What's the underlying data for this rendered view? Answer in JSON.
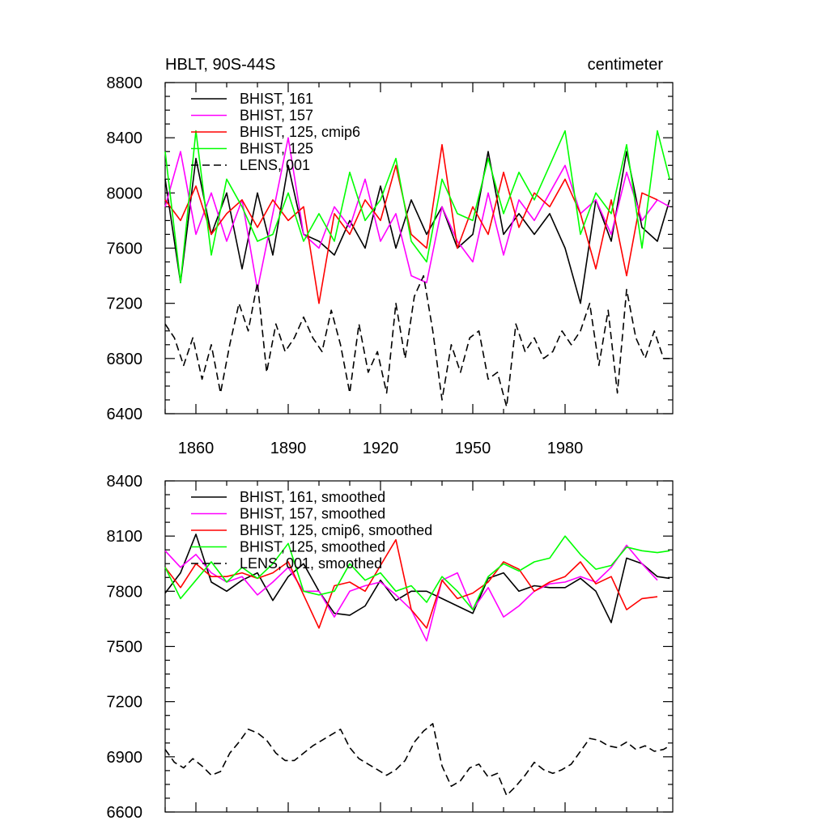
{
  "chart_data": [
    {
      "type": "line",
      "title": "HBLT, 90S-44S",
      "units": "centimeter",
      "xlim": [
        1850,
        2015
      ],
      "ylim": [
        6400,
        8800
      ],
      "xticks": [
        1860,
        1890,
        1920,
        1950,
        1980
      ],
      "yticks": [
        6400,
        6800,
        7200,
        7600,
        8000,
        8400,
        8800
      ],
      "x_tick_labels": [
        "1860",
        "1890",
        "1920",
        "1950",
        "1980"
      ],
      "y_tick_labels": [
        "6400",
        "6800",
        "7200",
        "7600",
        "8000",
        "8400",
        "8800"
      ],
      "legend_location": "top-left",
      "series": [
        {
          "name": "BHIST, 161",
          "color": "#000000",
          "dash": "solid",
          "x": [
            1850,
            1855,
            1860,
            1865,
            1870,
            1875,
            1880,
            1885,
            1890,
            1895,
            1900,
            1905,
            1910,
            1915,
            1920,
            1925,
            1930,
            1935,
            1940,
            1945,
            1950,
            1955,
            1960,
            1965,
            1970,
            1975,
            1980,
            1985,
            1990,
            1995,
            2000,
            2005,
            2010,
            2014
          ],
          "values": [
            8100,
            7350,
            8250,
            7700,
            8000,
            7450,
            8000,
            7550,
            8200,
            7700,
            7650,
            7550,
            7800,
            7600,
            8050,
            7600,
            7950,
            7700,
            7900,
            7600,
            7700,
            8300,
            7700,
            7850,
            7700,
            7850,
            7600,
            7200,
            7950,
            7650,
            8300,
            7750,
            7650,
            7950
          ]
        },
        {
          "name": "BHIST, 157",
          "color": "#ff00ff",
          "dash": "solid",
          "x": [
            1850,
            1855,
            1860,
            1865,
            1870,
            1875,
            1880,
            1885,
            1890,
            1895,
            1900,
            1905,
            1910,
            1915,
            1920,
            1925,
            1930,
            1935,
            1940,
            1945,
            1950,
            1955,
            1960,
            1965,
            1970,
            1975,
            1980,
            1985,
            1990,
            1995,
            2000,
            2005,
            2010,
            2014
          ],
          "values": [
            7900,
            8300,
            7700,
            8000,
            7650,
            7950,
            7300,
            7850,
            8400,
            7700,
            7600,
            7900,
            7750,
            8100,
            7650,
            7850,
            7400,
            7350,
            7900,
            7650,
            7500,
            8000,
            7550,
            7950,
            7800,
            8000,
            8200,
            7850,
            7950,
            7700,
            8150,
            7800,
            7950,
            7900
          ]
        },
        {
          "name": "BHIST, 125, cmip6",
          "color": "#ff0000",
          "dash": "solid",
          "x": [
            1850,
            1855,
            1860,
            1865,
            1870,
            1875,
            1880,
            1885,
            1890,
            1895,
            1900,
            1905,
            1910,
            1915,
            1920,
            1925,
            1930,
            1935,
            1940,
            1945,
            1950,
            1955,
            1960,
            1965,
            1970,
            1975,
            1980,
            1985,
            1990,
            1995,
            2000,
            2005,
            2010
          ],
          "values": [
            7950,
            7800,
            8050,
            7700,
            7850,
            7950,
            7750,
            7950,
            7800,
            7900,
            7200,
            7850,
            7700,
            7950,
            7800,
            8200,
            7700,
            7600,
            8350,
            7600,
            7900,
            7700,
            8150,
            7750,
            8000,
            7900,
            8100,
            7850,
            7450,
            7950,
            7400,
            8000,
            7950
          ]
        },
        {
          "name": "BHIST, 125",
          "color": "#00ff00",
          "dash": "solid",
          "x": [
            1850,
            1855,
            1860,
            1865,
            1870,
            1875,
            1880,
            1885,
            1890,
            1895,
            1900,
            1905,
            1910,
            1915,
            1920,
            1925,
            1930,
            1935,
            1940,
            1945,
            1950,
            1955,
            1960,
            1965,
            1970,
            1975,
            1980,
            1985,
            1990,
            1995,
            2000,
            2005,
            2010,
            2014
          ],
          "values": [
            8300,
            7350,
            8450,
            7550,
            8100,
            7900,
            7650,
            7700,
            8000,
            7650,
            7850,
            7650,
            8150,
            7800,
            7950,
            8250,
            7650,
            7500,
            8100,
            7850,
            7800,
            8250,
            7850,
            8150,
            7950,
            8200,
            8450,
            7700,
            8000,
            7850,
            8350,
            7600,
            8450,
            8100
          ]
        },
        {
          "name": "LENS, 001",
          "color": "#000000",
          "dash": "dashed",
          "x": [
            1850,
            1853,
            1856,
            1859,
            1862,
            1865,
            1868,
            1871,
            1874,
            1877,
            1880,
            1883,
            1886,
            1889,
            1892,
            1895,
            1898,
            1901,
            1904,
            1907,
            1910,
            1913,
            1916,
            1919,
            1922,
            1925,
            1928,
            1931,
            1934,
            1937,
            1940,
            1943,
            1946,
            1949,
            1952,
            1955,
            1958,
            1961,
            1964,
            1967,
            1970,
            1973,
            1976,
            1979,
            1982,
            1985,
            1988,
            1991,
            1994,
            1997,
            2000,
            2003,
            2006,
            2009,
            2012,
            2014
          ],
          "values": [
            7050,
            6950,
            6750,
            6950,
            6650,
            6900,
            6550,
            6900,
            7200,
            7000,
            7350,
            6700,
            7050,
            6850,
            6950,
            7100,
            6950,
            6850,
            7150,
            6900,
            6550,
            7050,
            6700,
            6850,
            6550,
            7200,
            6800,
            7250,
            7400,
            7000,
            6500,
            6900,
            6700,
            6950,
            7000,
            6650,
            6700,
            6450,
            7050,
            6850,
            6950,
            6800,
            6850,
            7000,
            6900,
            7000,
            7200,
            6750,
            7150,
            6550,
            7300,
            6950,
            6800,
            7000,
            6800,
            6800
          ]
        }
      ]
    },
    {
      "type": "line",
      "title": "",
      "xlim": [
        1850,
        2015
      ],
      "ylim": [
        6600,
        8400
      ],
      "xticks": [
        1860,
        1890,
        1920,
        1950,
        1980
      ],
      "yticks": [
        6600,
        6900,
        7200,
        7500,
        7800,
        8100,
        8400
      ],
      "y_tick_labels": [
        "6600",
        "6900",
        "7200",
        "7500",
        "7800",
        "8100",
        "8400"
      ],
      "legend_location": "top-left",
      "series": [
        {
          "name": "BHIST, 161, smoothed",
          "color": "#000000",
          "dash": "solid",
          "x": [
            1850,
            1855,
            1860,
            1865,
            1870,
            1875,
            1880,
            1885,
            1890,
            1895,
            1900,
            1905,
            1910,
            1915,
            1920,
            1925,
            1930,
            1935,
            1940,
            1945,
            1950,
            1955,
            1960,
            1965,
            1970,
            1975,
            1980,
            1985,
            1990,
            1995,
            2000,
            2005,
            2010,
            2014
          ],
          "values": [
            7790,
            7900,
            8110,
            7850,
            7800,
            7860,
            7900,
            7750,
            7880,
            7950,
            7800,
            7680,
            7670,
            7720,
            7860,
            7750,
            7800,
            7800,
            7760,
            7720,
            7680,
            7870,
            7900,
            7800,
            7830,
            7820,
            7820,
            7870,
            7800,
            7630,
            7980,
            7950,
            7880,
            7870
          ]
        },
        {
          "name": "BHIST, 157, smoothed",
          "color": "#ff00ff",
          "dash": "solid",
          "x": [
            1850,
            1855,
            1860,
            1865,
            1870,
            1875,
            1880,
            1885,
            1890,
            1895,
            1900,
            1905,
            1910,
            1915,
            1920,
            1925,
            1930,
            1935,
            1940,
            1945,
            1950,
            1955,
            1960,
            1965,
            1970,
            1975,
            1980,
            1985,
            1990,
            1995,
            2000,
            2005,
            2010
          ],
          "values": [
            8020,
            7930,
            8000,
            7900,
            7850,
            7880,
            7780,
            7850,
            7930,
            7800,
            7800,
            7660,
            7800,
            7830,
            7850,
            7780,
            7700,
            7530,
            7860,
            7900,
            7700,
            7820,
            7660,
            7720,
            7800,
            7840,
            7850,
            7880,
            7850,
            7930,
            8050,
            7950,
            7860
          ]
        },
        {
          "name": "BHIST, 125, cmip6, smoothed",
          "color": "#ff0000",
          "dash": "solid",
          "x": [
            1850,
            1855,
            1860,
            1865,
            1870,
            1875,
            1880,
            1885,
            1890,
            1895,
            1900,
            1905,
            1910,
            1915,
            1920,
            1925,
            1930,
            1935,
            1940,
            1945,
            1950,
            1955,
            1960,
            1965,
            1970,
            1975,
            1980,
            1985,
            1990,
            1995,
            2000,
            2005,
            2010
          ],
          "values": [
            7930,
            7820,
            7950,
            7880,
            7880,
            7900,
            7870,
            7900,
            7960,
            7780,
            7600,
            7830,
            7850,
            7800,
            7940,
            8080,
            7700,
            7600,
            7860,
            7760,
            7790,
            7850,
            7960,
            7920,
            7800,
            7850,
            7880,
            7960,
            7840,
            7880,
            7700,
            7760,
            7770
          ]
        },
        {
          "name": "BHIST, 125, smoothed",
          "color": "#00ff00",
          "dash": "solid",
          "x": [
            1850,
            1855,
            1860,
            1865,
            1870,
            1875,
            1880,
            1885,
            1890,
            1895,
            1900,
            1905,
            1910,
            1915,
            1920,
            1925,
            1930,
            1935,
            1940,
            1945,
            1950,
            1955,
            1960,
            1965,
            1970,
            1975,
            1980,
            1985,
            1990,
            1995,
            2000,
            2005,
            2010,
            2014
          ],
          "values": [
            7930,
            7760,
            7860,
            7960,
            7850,
            7930,
            7870,
            7950,
            8060,
            7800,
            7780,
            7800,
            7950,
            7860,
            7900,
            7800,
            7830,
            7740,
            7880,
            7800,
            7700,
            7880,
            7950,
            7910,
            7960,
            7980,
            8100,
            8000,
            7920,
            7940,
            8040,
            8020,
            8010,
            8020
          ]
        },
        {
          "name": "LENS, 001, smoothed",
          "color": "#000000",
          "dash": "dashed",
          "x": [
            1850,
            1853,
            1856,
            1859,
            1862,
            1865,
            1868,
            1871,
            1874,
            1877,
            1880,
            1883,
            1886,
            1889,
            1892,
            1895,
            1898,
            1901,
            1904,
            1907,
            1910,
            1913,
            1916,
            1919,
            1922,
            1925,
            1928,
            1931,
            1934,
            1937,
            1940,
            1943,
            1946,
            1949,
            1952,
            1955,
            1958,
            1961,
            1964,
            1967,
            1970,
            1973,
            1976,
            1979,
            1982,
            1985,
            1988,
            1991,
            1994,
            1997,
            2000,
            2003,
            2006,
            2009,
            2012,
            2014
          ],
          "values": [
            6940,
            6870,
            6840,
            6890,
            6850,
            6800,
            6820,
            6920,
            6980,
            7050,
            7030,
            6990,
            6920,
            6880,
            6880,
            6920,
            6960,
            6990,
            7020,
            7050,
            6950,
            6890,
            6860,
            6830,
            6800,
            6830,
            6880,
            6980,
            7040,
            7080,
            6850,
            6740,
            6770,
            6840,
            6860,
            6790,
            6810,
            6690,
            6740,
            6800,
            6870,
            6830,
            6810,
            6830,
            6860,
            6930,
            7000,
            6990,
            6960,
            6950,
            6980,
            6940,
            6960,
            6930,
            6940,
            6960
          ]
        }
      ]
    }
  ]
}
